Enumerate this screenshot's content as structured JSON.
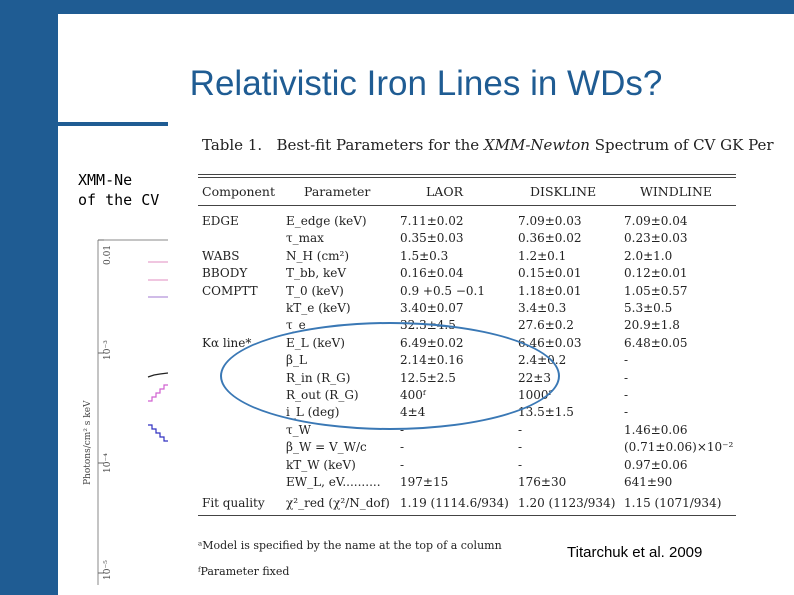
{
  "slide": {
    "title": "Relativistic Iron Lines in WDs?",
    "subtitle_lines": [
      "XMM-Ne",
      "of the CV"
    ],
    "citation": "Titarchuk et al. 2009"
  },
  "plot": {
    "ylabel": "Photons/cm² s keV",
    "ticks": [
      "0.01",
      "10⁻³",
      "10⁻⁴",
      "10⁻⁵"
    ]
  },
  "table": {
    "caption_prefix": "Table 1.",
    "caption_text": "Best-fit Parameters for the ",
    "caption_italic": "XMM-Newton",
    "caption_suffix": " Spectrum of CV GK Per",
    "headers": [
      "Component",
      "Parameter",
      "LAOR",
      "DISKLINE",
      "WINDLINE"
    ],
    "rows": [
      [
        "EDGE",
        "E_edge (keV)",
        "7.11±0.02",
        "7.09±0.03",
        "7.09±0.04"
      ],
      [
        "",
        "τ_max",
        "0.35±0.03",
        "0.36±0.02",
        "0.23±0.03"
      ],
      [
        "WABS",
        "N_H (cm²)",
        "1.5±0.3",
        "1.2±0.1",
        "2.0±1.0"
      ],
      [
        "BBODY",
        "T_bb, keV",
        "0.16±0.04",
        "0.15±0.01",
        "0.12±0.01"
      ],
      [
        "COMPTT",
        "T_0 (keV)",
        "0.9 +0.5 −0.1",
        "1.18±0.01",
        "1.05±0.57"
      ],
      [
        "",
        "kT_e (keV)",
        "3.40±0.07",
        "3.4±0.3",
        "5.3±0.5"
      ],
      [
        "",
        "τ_e",
        "32.3±4.5",
        "27.6±0.2",
        "20.9±1.8"
      ],
      [
        "Kα line*",
        "E_L (keV)",
        "6.49±0.02",
        "6.46±0.03",
        "6.48±0.05"
      ],
      [
        "",
        "β_L",
        "2.14±0.16",
        "2.4±0.2",
        "-"
      ],
      [
        "",
        "R_in (R_G)",
        "12.5±2.5",
        "22±3",
        "-"
      ],
      [
        "",
        "R_out (R_G)",
        "400ᶠ",
        "1000ᶠ",
        "-"
      ],
      [
        "",
        "i_L (deg)",
        "4±4",
        "13.5±1.5",
        "-"
      ],
      [
        "",
        "τ_W",
        "-",
        "-",
        "1.46±0.06"
      ],
      [
        "",
        "β_W = V_W/c",
        "-",
        "-",
        "(0.71±0.06)×10⁻²"
      ],
      [
        "",
        "kT_W (keV)",
        "-",
        "-",
        "0.97±0.06"
      ],
      [
        "",
        "EW_L, eV..........",
        "197±15",
        "176±30",
        "641±90"
      ],
      [
        "Fit quality",
        "χ²_red (χ²/N_dof)",
        "1.19 (1114.6/934)",
        "1.20 (1123/934)",
        "1.15 (1071/934)"
      ]
    ],
    "footnotes": [
      "ᵃModel is specified by the name at the top of a column",
      "ᶠParameter fixed"
    ]
  }
}
